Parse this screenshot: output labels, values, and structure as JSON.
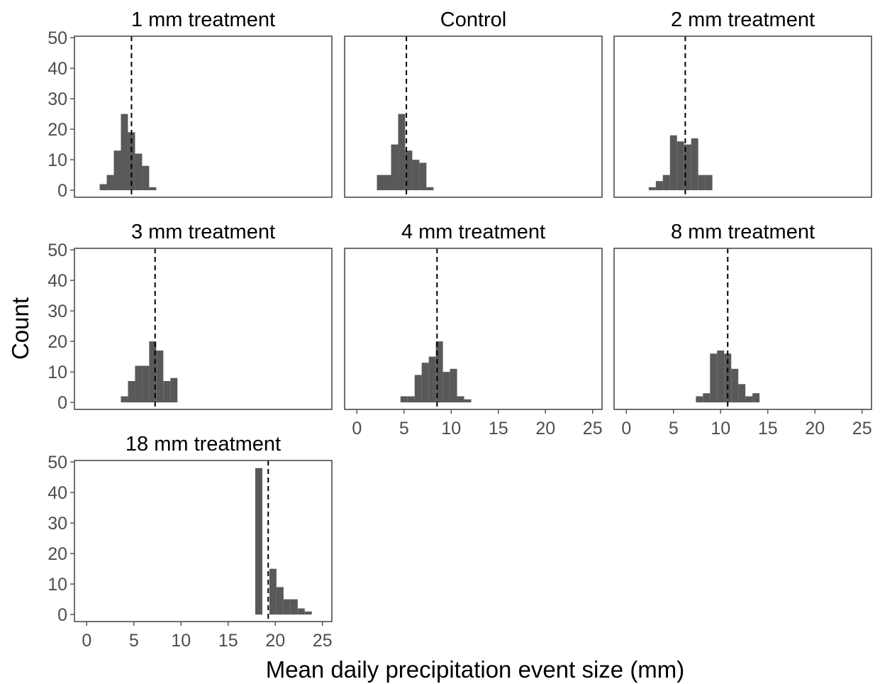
{
  "chart_data": {
    "type": "histogram-facets",
    "xlabel": "Mean daily precipitation event size (mm)",
    "ylabel": "Count",
    "xlim": [
      -1.3,
      26.0
    ],
    "ylim": [
      -2.3,
      50.5
    ],
    "xticks": [
      0,
      5,
      10,
      15,
      20,
      25
    ],
    "yticks": [
      0,
      10,
      20,
      30,
      40,
      50
    ],
    "bin_width": 0.75,
    "grid": false,
    "panels": [
      {
        "title": "1 mm treatment",
        "mean": 4.75,
        "bins": [
          [
            1.75,
            2
          ],
          [
            2.5,
            5
          ],
          [
            3.25,
            13
          ],
          [
            4,
            25
          ],
          [
            4.75,
            19
          ],
          [
            5.5,
            12
          ],
          [
            6.25,
            8
          ],
          [
            7,
            1
          ]
        ]
      },
      {
        "title": "Control",
        "mean": 5.25,
        "bins": [
          [
            2.5,
            5
          ],
          [
            3.25,
            5
          ],
          [
            4,
            15
          ],
          [
            4.75,
            25
          ],
          [
            5.5,
            13
          ],
          [
            6.25,
            10
          ],
          [
            7,
            9
          ],
          [
            7.75,
            1
          ]
        ]
      },
      {
        "title": "2 mm treatment",
        "mean": 6.25,
        "bins": [
          [
            2.75,
            1
          ],
          [
            3.5,
            3
          ],
          [
            4.25,
            5
          ],
          [
            5,
            18
          ],
          [
            5.75,
            16
          ],
          [
            6.5,
            15
          ],
          [
            7.25,
            17
          ],
          [
            8,
            5
          ],
          [
            8.75,
            5
          ]
        ]
      },
      {
        "title": "3 mm treatment",
        "mean": 7.25,
        "bins": [
          [
            4,
            2
          ],
          [
            4.75,
            7
          ],
          [
            5.5,
            12
          ],
          [
            6.25,
            12
          ],
          [
            7,
            20
          ],
          [
            7.75,
            17
          ],
          [
            8.5,
            7
          ],
          [
            9.25,
            8
          ]
        ]
      },
      {
        "title": "4 mm treatment",
        "mean": 8.5,
        "bins": [
          [
            5,
            2
          ],
          [
            5.75,
            2
          ],
          [
            6.5,
            9
          ],
          [
            7.25,
            13
          ],
          [
            8,
            15
          ],
          [
            8.75,
            20
          ],
          [
            9.5,
            10
          ],
          [
            10.25,
            11
          ],
          [
            11,
            2
          ],
          [
            11.75,
            1
          ]
        ]
      },
      {
        "title": "8 mm treatment",
        "mean": 10.75,
        "bins": [
          [
            7.75,
            2
          ],
          [
            8.5,
            3
          ],
          [
            9.25,
            16
          ],
          [
            10,
            17
          ],
          [
            10.75,
            16
          ],
          [
            11.5,
            11
          ],
          [
            12.25,
            6
          ],
          [
            13,
            2
          ],
          [
            13.75,
            3
          ]
        ]
      },
      {
        "title": "18 mm treatment",
        "mean": 19.25,
        "bins": [
          [
            18.25,
            48
          ],
          [
            19,
            0
          ],
          [
            19.75,
            15
          ],
          [
            20.5,
            9
          ],
          [
            21.25,
            5
          ],
          [
            22,
            5
          ],
          [
            22.75,
            2
          ],
          [
            23.5,
            1
          ]
        ]
      }
    ]
  }
}
